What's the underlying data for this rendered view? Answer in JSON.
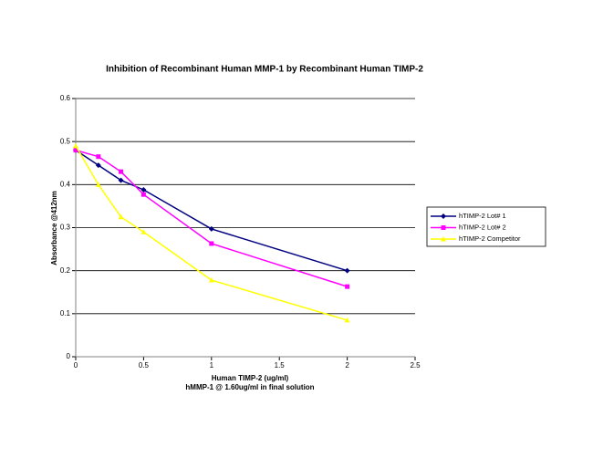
{
  "chart_data": {
    "type": "line",
    "title": "Inhibition of Recombinant Human MMP-1 by Recombinant Human TIMP-2",
    "xlabel": "Human TIMP-2 (ug/ml)",
    "xlabel_note": "hMMP-1 @ 1.60ug/ml in final solution",
    "ylabel": "Absorbance @412nm",
    "x": [
      0,
      0.167,
      0.333,
      0.5,
      1,
      2
    ],
    "series": [
      {
        "name": "hTIMP-2 Lot# 1",
        "color": "#000080",
        "marker": "diamond",
        "values": [
          0.48,
          0.445,
          0.41,
          0.388,
          0.297,
          0.2
        ]
      },
      {
        "name": "hTIMP-2 Lot# 2",
        "color": "#ff00ff",
        "marker": "square",
        "values": [
          0.48,
          0.465,
          0.43,
          0.377,
          0.263,
          0.163
        ]
      },
      {
        "name": "hTIMP-2 Competitor",
        "color": "#ffff00",
        "marker": "triangle",
        "values": [
          0.49,
          0.4,
          0.325,
          0.29,
          0.178,
          0.085
        ]
      }
    ],
    "xlim": [
      0,
      2.5
    ],
    "xticks": [
      0,
      0.5,
      1,
      1.5,
      2,
      2.5
    ],
    "ylim": [
      0,
      0.6
    ],
    "yticks": [
      0,
      0.1,
      0.2,
      0.3,
      0.4,
      0.5,
      0.6
    ],
    "grid": true,
    "legend": "right"
  }
}
